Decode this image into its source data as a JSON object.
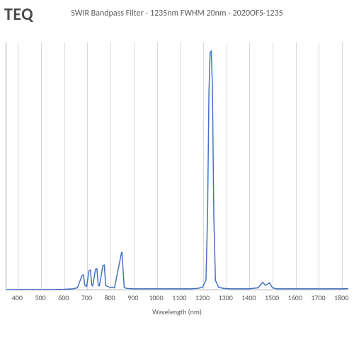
{
  "brand_text": "TEQ",
  "title": "SWIR Bandpass Filter - 1235nm FWHM 20nm - 2020OFS-1235",
  "chart": {
    "type": "line",
    "x_axis_label": "Wavelength (nm)",
    "x_ticks": [
      400,
      500,
      600,
      700,
      800,
      900,
      1000,
      1100,
      1200,
      1300,
      1400,
      1500,
      1600,
      1700,
      1800
    ],
    "x_min_visible": 350,
    "x_max_visible": 1830,
    "xlim": [
      350,
      1830
    ],
    "ylim": [
      0,
      100
    ],
    "line_color": "#4472c4",
    "line_width": 1.5,
    "grid_color": "#d9d9d9",
    "axis_color": "#a6a6a6",
    "bg_color": "#ffffff",
    "tick_fontsize": 10,
    "title_fontsize": 12,
    "title_color": "#595959",
    "data": [
      [
        350,
        0.2
      ],
      [
        400,
        0.3
      ],
      [
        450,
        0.3
      ],
      [
        500,
        0.3
      ],
      [
        550,
        0.3
      ],
      [
        600,
        0.4
      ],
      [
        640,
        0.6
      ],
      [
        660,
        1.0
      ],
      [
        680,
        6.0
      ],
      [
        686,
        6.2
      ],
      [
        692,
        2.0
      ],
      [
        700,
        1.5
      ],
      [
        710,
        8.0
      ],
      [
        716,
        8.2
      ],
      [
        722,
        2.0
      ],
      [
        726,
        1.8
      ],
      [
        738,
        8.5
      ],
      [
        744,
        8.7
      ],
      [
        750,
        2.0
      ],
      [
        755,
        1.8
      ],
      [
        770,
        10.0
      ],
      [
        776,
        10.2
      ],
      [
        782,
        2.0
      ],
      [
        790,
        1.6
      ],
      [
        800,
        1.2
      ],
      [
        820,
        1.0
      ],
      [
        850,
        15.0
      ],
      [
        852,
        15.5
      ],
      [
        862,
        1.2
      ],
      [
        870,
        0.8
      ],
      [
        900,
        0.6
      ],
      [
        950,
        0.6
      ],
      [
        1000,
        0.6
      ],
      [
        1050,
        0.6
      ],
      [
        1100,
        0.6
      ],
      [
        1150,
        0.6
      ],
      [
        1180,
        0.8
      ],
      [
        1200,
        1.2
      ],
      [
        1215,
        4.0
      ],
      [
        1222,
        30.0
      ],
      [
        1228,
        80.0
      ],
      [
        1233,
        96.0
      ],
      [
        1238,
        96.5
      ],
      [
        1243,
        82.0
      ],
      [
        1249,
        30.0
      ],
      [
        1256,
        4.0
      ],
      [
        1270,
        1.2
      ],
      [
        1290,
        0.8
      ],
      [
        1320,
        0.6
      ],
      [
        1360,
        0.6
      ],
      [
        1400,
        0.6
      ],
      [
        1440,
        1.0
      ],
      [
        1460,
        3.2
      ],
      [
        1472,
        2.0
      ],
      [
        1490,
        3.0
      ],
      [
        1502,
        1.0
      ],
      [
        1520,
        0.6
      ],
      [
        1560,
        0.6
      ],
      [
        1600,
        0.6
      ],
      [
        1650,
        0.6
      ],
      [
        1700,
        0.6
      ],
      [
        1750,
        0.6
      ],
      [
        1800,
        0.6
      ],
      [
        1830,
        0.7
      ]
    ]
  }
}
